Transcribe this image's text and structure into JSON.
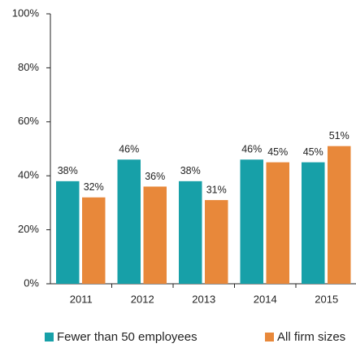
{
  "chart_data": {
    "type": "bar",
    "categories": [
      "2011",
      "2012",
      "2013",
      "2014",
      "2015"
    ],
    "series": [
      {
        "name": "Fewer than 50 employees",
        "color": "#17a0a8",
        "values": [
          38,
          46,
          38,
          46,
          45
        ],
        "value_labels": [
          "38%",
          "46%",
          "38%",
          "46%",
          "45%"
        ]
      },
      {
        "name": "All firm sizes",
        "color": "#e8883a",
        "values": [
          32,
          36,
          31,
          45,
          51
        ],
        "value_labels": [
          "32%",
          "36%",
          "31%",
          "45%",
          "51%"
        ]
      }
    ],
    "ylim": [
      0,
      100
    ],
    "yticks": [
      {
        "value": 0,
        "label": "0%"
      },
      {
        "value": 20,
        "label": "20%"
      },
      {
        "value": 40,
        "label": "40%"
      },
      {
        "value": 60,
        "label": "60%"
      },
      {
        "value": 80,
        "label": "80%"
      },
      {
        "value": 100,
        "label": "100%"
      }
    ],
    "grid": false
  }
}
